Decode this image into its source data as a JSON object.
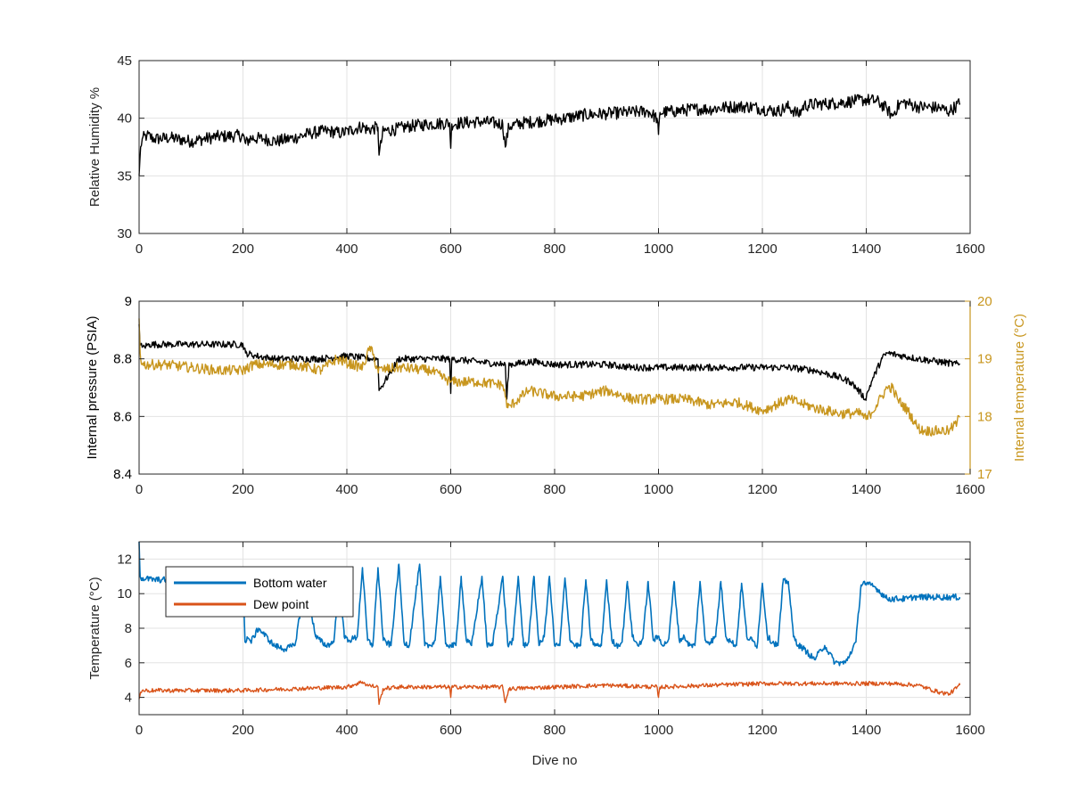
{
  "figure": {
    "xlabel": "Dive no"
  },
  "colors": {
    "black": "#000000",
    "gold": "#C8961E",
    "blue": "#0072BD",
    "orange": "#D95319",
    "axis": "#262626",
    "grid": "#E3E3E3"
  },
  "chart_data": [
    {
      "type": "line",
      "panel": "humidity",
      "title": "",
      "xlabel": "",
      "ylabel": "Relative Humidity %",
      "xlim": [
        0,
        1600
      ],
      "ylim": [
        30,
        45
      ],
      "xticks": [
        0,
        200,
        400,
        600,
        800,
        1000,
        1200,
        1400,
        1600
      ],
      "yticks": [
        30,
        35,
        40,
        45
      ],
      "grid": true,
      "series": [
        {
          "color": "#000000",
          "x": [
            0,
            3,
            6,
            15,
            30,
            60,
            100,
            150,
            200,
            205,
            215,
            240,
            265,
            300,
            330,
            360,
            390,
            410,
            430,
            440,
            460,
            462,
            470,
            490,
            520,
            560,
            598,
            600,
            602,
            620,
            660,
            700,
            705,
            712,
            740,
            780,
            820,
            860,
            900,
            940,
            980,
            997,
            1000,
            1003,
            1030,
            1070,
            1100,
            1140,
            1180,
            1200,
            1230,
            1250,
            1270,
            1280,
            1300,
            1340,
            1380,
            1400,
            1420,
            1440,
            1450,
            1460,
            1470,
            1500,
            1540,
            1560,
            1580
          ],
          "y": [
            35.0,
            37.5,
            38.2,
            38.5,
            38.2,
            38.3,
            38.0,
            38.4,
            38.5,
            37.8,
            38.3,
            38.2,
            38.0,
            38.3,
            38.7,
            38.9,
            38.7,
            39.0,
            39.3,
            39.0,
            39.2,
            36.8,
            38.9,
            39.0,
            39.3,
            39.5,
            39.6,
            37.4,
            39.5,
            39.6,
            39.7,
            39.5,
            37.5,
            39.3,
            39.6,
            39.8,
            40.0,
            40.3,
            40.4,
            40.5,
            40.6,
            40.0,
            38.6,
            40.5,
            40.6,
            40.8,
            40.8,
            41.0,
            41.0,
            40.8,
            40.6,
            41.0,
            40.3,
            41.1,
            41.2,
            41.3,
            41.5,
            41.6,
            41.5,
            40.8,
            40.2,
            41.0,
            41.4,
            41.0,
            40.9,
            40.6,
            41.3
          ],
          "noise": 0.55
        }
      ]
    },
    {
      "type": "line",
      "panel": "pressure-temperature",
      "title": "",
      "xlabel": "",
      "ylabel": "Internal pressure (PSIA)",
      "y2label": "Internal temperature (°C)",
      "xlim": [
        0,
        1600
      ],
      "ylim": [
        8.4,
        9
      ],
      "y2lim": [
        17,
        20
      ],
      "xticks": [
        0,
        200,
        400,
        600,
        800,
        1000,
        1200,
        1400,
        1600
      ],
      "yticks": [
        8.4,
        8.6,
        8.8,
        9
      ],
      "y2ticks": [
        17,
        18,
        19,
        20
      ],
      "grid": true,
      "series": [
        {
          "axis": "left",
          "color": "#000000",
          "x": [
            0,
            2,
            6,
            20,
            60,
            100,
            150,
            200,
            205,
            225,
            260,
            300,
            350,
            400,
            450,
            460,
            462,
            500,
            560,
            598,
            600,
            602,
            650,
            705,
            708,
            712,
            760,
            800,
            850,
            900,
            950,
            1000,
            1050,
            1100,
            1150,
            1200,
            1250,
            1300,
            1340,
            1370,
            1390,
            1398,
            1410,
            1430,
            1440,
            1500,
            1540,
            1580
          ],
          "y": [
            8.92,
            8.85,
            8.84,
            8.85,
            8.85,
            8.85,
            8.85,
            8.85,
            8.82,
            8.81,
            8.8,
            8.8,
            8.8,
            8.81,
            8.8,
            8.8,
            8.69,
            8.8,
            8.8,
            8.8,
            8.68,
            8.8,
            8.79,
            8.78,
            8.66,
            8.78,
            8.79,
            8.78,
            8.78,
            8.78,
            8.77,
            8.77,
            8.77,
            8.77,
            8.77,
            8.77,
            8.77,
            8.76,
            8.74,
            8.72,
            8.68,
            8.66,
            8.72,
            8.8,
            8.82,
            8.8,
            8.79,
            8.78
          ],
          "noise": 0.012
        },
        {
          "axis": "right",
          "color": "#C8961E",
          "x": [
            0,
            2,
            6,
            20,
            50,
            100,
            150,
            200,
            220,
            250,
            300,
            350,
            380,
            410,
            430,
            445,
            460,
            500,
            560,
            600,
            650,
            700,
            710,
            750,
            800,
            850,
            900,
            950,
            1000,
            1050,
            1100,
            1150,
            1200,
            1250,
            1300,
            1350,
            1390,
            1400,
            1420,
            1440,
            1450,
            1460,
            1480,
            1500,
            1510,
            1540,
            1560,
            1575,
            1580
          ],
          "y": [
            19.7,
            19.1,
            18.9,
            18.9,
            18.9,
            18.85,
            18.8,
            18.8,
            18.9,
            18.9,
            18.9,
            18.8,
            19.0,
            18.9,
            18.85,
            19.2,
            18.8,
            18.85,
            18.8,
            18.6,
            18.6,
            18.55,
            18.15,
            18.45,
            18.35,
            18.35,
            18.45,
            18.3,
            18.3,
            18.3,
            18.2,
            18.25,
            18.1,
            18.3,
            18.15,
            18.05,
            18.05,
            17.95,
            18.2,
            18.5,
            18.5,
            18.3,
            18.1,
            17.8,
            17.75,
            17.75,
            17.75,
            17.9,
            18.0
          ],
          "noise": 0.09
        }
      ]
    },
    {
      "type": "line",
      "panel": "temperature",
      "title": "",
      "xlabel": "Dive no",
      "ylabel": "Temperature (°C)",
      "xlim": [
        0,
        1600
      ],
      "ylim": [
        3,
        13
      ],
      "xticks": [
        0,
        200,
        400,
        600,
        800,
        1000,
        1200,
        1400,
        1600
      ],
      "yticks": [
        4,
        6,
        8,
        10,
        12
      ],
      "grid": true,
      "legend": "top-left",
      "series": [
        {
          "name": "Bottom water",
          "color": "#0072BD",
          "x": [
            0,
            2,
            5,
            30,
            60,
            100,
            150,
            200,
            204,
            208,
            215,
            230,
            260,
            280,
            300,
            320,
            340,
            360,
            375,
            385,
            395,
            405,
            420,
            430,
            440,
            450,
            460,
            470,
            485,
            500,
            510,
            520,
            540,
            550,
            560,
            570,
            580,
            590,
            600,
            610,
            620,
            630,
            640,
            660,
            670,
            680,
            700,
            710,
            720,
            730,
            740,
            750,
            760,
            770,
            780,
            790,
            800,
            810,
            820,
            830,
            840,
            850,
            860,
            870,
            880,
            890,
            900,
            910,
            920,
            930,
            940,
            950,
            960,
            970,
            980,
            990,
            1000,
            1010,
            1020,
            1030,
            1040,
            1050,
            1060,
            1070,
            1080,
            1090,
            1100,
            1110,
            1120,
            1130,
            1140,
            1150,
            1160,
            1170,
            1180,
            1190,
            1200,
            1210,
            1220,
            1230,
            1240,
            1250,
            1260,
            1270,
            1280,
            1290,
            1300,
            1320,
            1340,
            1360,
            1380,
            1390,
            1395,
            1400,
            1410,
            1420,
            1430,
            1440,
            1460,
            1480,
            1490,
            1500,
            1520,
            1550,
            1580
          ],
          "y": [
            13.0,
            11.0,
            10.9,
            10.8,
            10.8,
            10.8,
            10.8,
            10.8,
            7.2,
            7.5,
            7.2,
            8.0,
            7.0,
            6.8,
            7.0,
            10.8,
            7.5,
            7.0,
            7.2,
            11.0,
            7.5,
            7.3,
            7.5,
            11.5,
            7.3,
            7.0,
            11.5,
            7.3,
            7.0,
            11.7,
            7.2,
            7.0,
            11.7,
            7.0,
            7.0,
            7.3,
            11.0,
            7.1,
            7.0,
            7.0,
            11.0,
            7.3,
            7.0,
            11.0,
            7.0,
            7.0,
            11.0,
            7.0,
            7.3,
            11.0,
            7.0,
            7.2,
            11.0,
            7.0,
            7.5,
            11.0,
            7.0,
            7.0,
            10.9,
            7.3,
            7.0,
            7.0,
            10.8,
            7.3,
            7.0,
            7.0,
            10.8,
            7.3,
            7.0,
            7.2,
            10.7,
            7.5,
            7.0,
            7.4,
            10.7,
            7.3,
            7.5,
            7.0,
            7.4,
            10.7,
            7.3,
            7.5,
            7.0,
            7.0,
            10.7,
            7.3,
            7.2,
            7.5,
            10.7,
            7.5,
            7.2,
            7.0,
            10.6,
            7.5,
            7.3,
            7.0,
            10.6,
            7.5,
            7.2,
            7.0,
            10.7,
            10.7,
            7.5,
            7.0,
            6.8,
            6.5,
            6.2,
            7.0,
            6.0,
            6.0,
            7.2,
            10.5,
            10.7,
            10.5,
            10.5,
            10.3,
            10.0,
            9.7,
            9.7,
            9.7,
            9.8,
            9.8,
            9.8,
            9.8,
            9.8
          ],
          "noise": 0.18
        },
        {
          "name": "Dew point",
          "color": "#D95319",
          "x": [
            0,
            3,
            8,
            30,
            100,
            200,
            300,
            400,
            430,
            440,
            460,
            462,
            470,
            500,
            598,
            600,
            602,
            700,
            705,
            712,
            800,
            900,
            997,
            1000,
            1003,
            1100,
            1200,
            1300,
            1400,
            1450,
            1500,
            1540,
            1560,
            1580
          ],
          "y": [
            3.9,
            4.3,
            4.4,
            4.4,
            4.4,
            4.4,
            4.5,
            4.6,
            4.9,
            4.7,
            4.6,
            3.6,
            4.5,
            4.6,
            4.6,
            4.0,
            4.6,
            4.6,
            3.7,
            4.5,
            4.6,
            4.7,
            4.6,
            4.0,
            4.6,
            4.7,
            4.8,
            4.8,
            4.8,
            4.8,
            4.7,
            4.3,
            4.2,
            4.7
          ],
          "noise": 0.12
        }
      ]
    }
  ]
}
